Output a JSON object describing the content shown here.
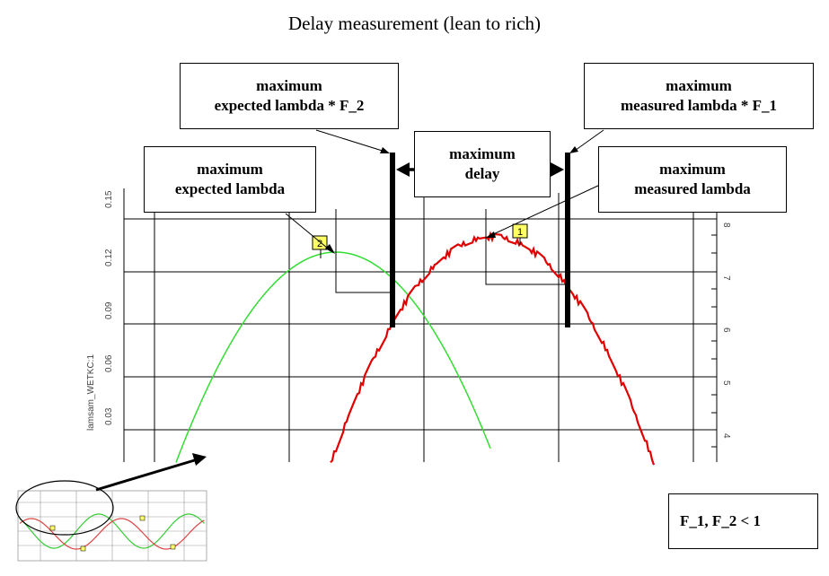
{
  "title": "Delay measurement (lean to rich)",
  "boxes": {
    "max_expected_f2": {
      "line1": "maximum",
      "line2": "expected lambda * F_2"
    },
    "max_measured_f1": {
      "line1": "maximum",
      "line2": "measured lambda * F_1"
    },
    "max_delay": {
      "line1": "maximum",
      "line2": "delay"
    },
    "max_expected": {
      "line1": "maximum",
      "line2": "expected lambda"
    },
    "max_measured": {
      "line1": "maximum",
      "line2": "measured lambda"
    },
    "condition": "F_1, F_2 < 1"
  },
  "axis": {
    "left_label": "lamsam_WETKC:1",
    "left_ticks": [
      "0.15",
      "0.12",
      "0.09",
      "0.06",
      "0.03"
    ],
    "right_ticks": [
      "8",
      "7",
      "6",
      "5",
      "4"
    ]
  },
  "markers": {
    "expected": "2",
    "measured": "1"
  },
  "colors": {
    "expected": "#33dd33",
    "measured": "#e00000",
    "marker_fill": "#ffff66",
    "grid": "#000000"
  }
}
